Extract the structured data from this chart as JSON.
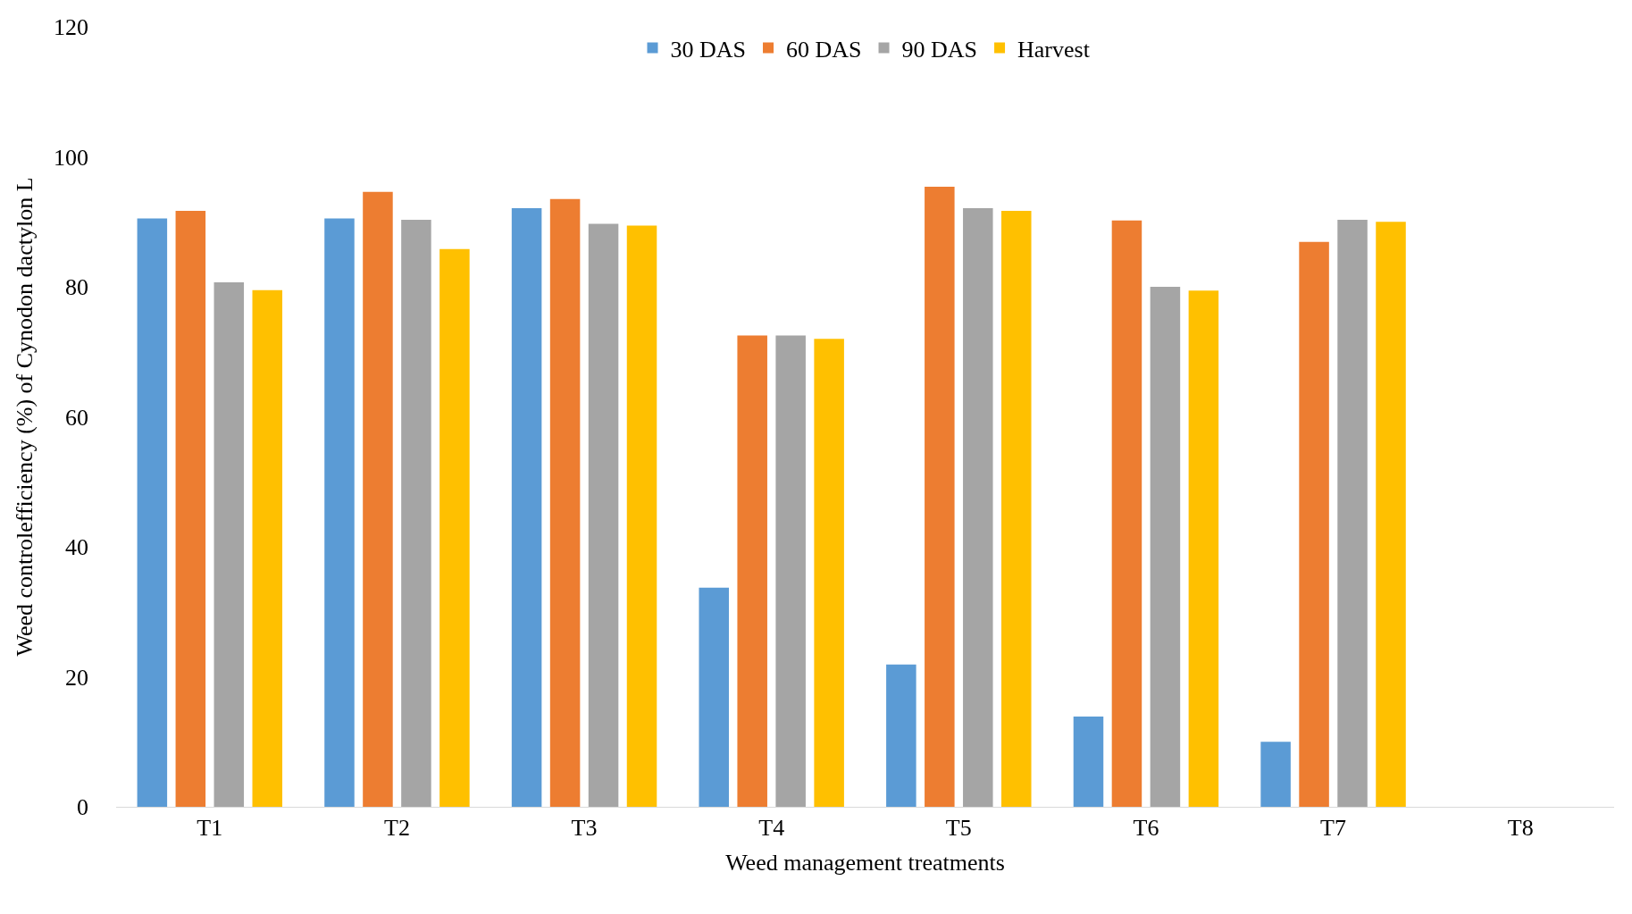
{
  "chart_data": {
    "type": "bar",
    "xlabel": "Weed management treatments",
    "ylabel": "Weed controlefficiency (%) of Cynodon dactylon L",
    "categories": [
      "T1",
      "T2",
      "T3",
      "T4",
      "T5",
      "T6",
      "T7",
      "T8"
    ],
    "series": [
      {
        "name": "30 DAS",
        "color": "#5b9bd5",
        "values": [
          90.5,
          90.5,
          92.1,
          33.7,
          21.9,
          13.9,
          10.0,
          0
        ]
      },
      {
        "name": "60 DAS",
        "color": "#ed7d31",
        "values": [
          91.7,
          94.6,
          93.5,
          72.5,
          95.4,
          90.2,
          86.9,
          0
        ]
      },
      {
        "name": "90 DAS",
        "color": "#a5a5a5",
        "values": [
          80.7,
          90.3,
          89.7,
          72.5,
          92.1,
          80.0,
          90.3,
          0
        ]
      },
      {
        "name": "Harvest",
        "color": "#ffc000",
        "values": [
          79.5,
          85.8,
          89.4,
          72.0,
          91.7,
          79.4,
          90.0,
          0
        ]
      }
    ],
    "ylim": [
      0,
      120
    ],
    "yticks": [
      0,
      20,
      40,
      60,
      80,
      100,
      120
    ],
    "legend": "top"
  }
}
